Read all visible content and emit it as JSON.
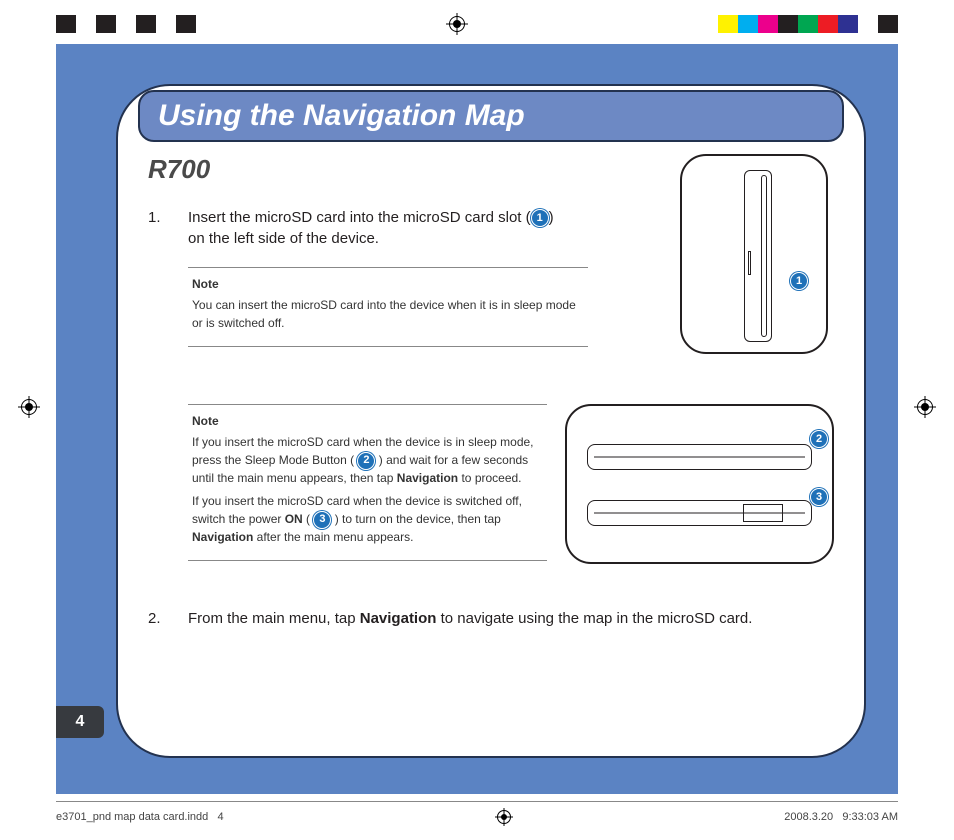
{
  "colors": {
    "page_bg": "#5b83c3",
    "frame_border": "#23324f",
    "title_bg": "#6d89c4",
    "title_text": "#ffffff",
    "badge_bg": "#1f71b8",
    "badge_text": "#ffffff",
    "body_text": "#231f20",
    "rule": "#888888",
    "tab_bg": "#373a3f",
    "swatches_left": [
      "#231f20",
      "#ffffff",
      "#231f20",
      "#ffffff",
      "#231f20",
      "#ffffff",
      "#231f20"
    ],
    "swatches_right": [
      "#fff200",
      "#00aeef",
      "#ec008c",
      "#231f20",
      "#00a651",
      "#ed1c24",
      "#2e3192",
      "#ffffff",
      "#231f20"
    ]
  },
  "title": "Using the Navigation Map",
  "model": "R700",
  "step1": {
    "num": "1.",
    "text_before": "Insert the microSD card into the microSD card slot (",
    "badge": "1",
    "text_after": ") on the left side of the device."
  },
  "note1": {
    "label": "Note",
    "text": "You can insert the microSD card into the device when it is in sleep mode or is switched off."
  },
  "note2": {
    "label": "Note",
    "p1_a": "If you insert the microSD card when the device is in sleep mode, press the Sleep Mode Button ( ",
    "p1_badge": "2",
    "p1_b": " ) and wait for a few seconds until the main menu appears, then tap ",
    "p1_bold": "Navigation",
    "p1_c": " to proceed.",
    "p2_a": "If you insert the microSD card when the device is switched off, switch the power ",
    "p2_bold1": "ON",
    "p2_b": " ( ",
    "p2_badge": "3",
    "p2_c": " ) to turn on the device, then tap ",
    "p2_bold2": "Navigation",
    "p2_d": " after the main menu appears."
  },
  "step2": {
    "num": "2.",
    "a": "From the main menu, tap ",
    "bold": "Navigation",
    "b": " to navigate using the map in the microSD card."
  },
  "fig1_badge": "1",
  "fig2_badge_a": "2",
  "fig2_badge_b": "3",
  "page_number": "4",
  "footer": {
    "left_file": "e3701_pnd map data card.indd",
    "left_page": "4",
    "date": "2008.3.20",
    "time": "9:33:03 AM"
  }
}
